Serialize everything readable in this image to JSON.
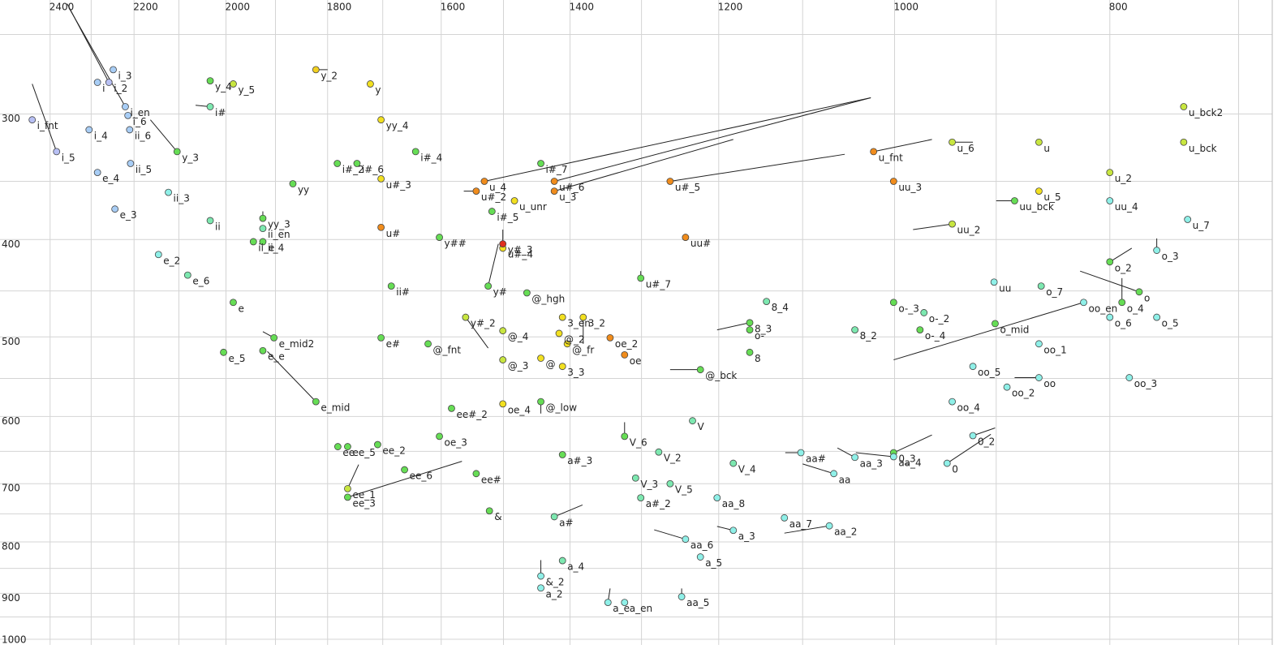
{
  "chart_data": {
    "type": "scatter",
    "xscale": "log",
    "yscale": "log",
    "xlim": [
      2528,
      676
    ],
    "ylim": [
      231,
      1013
    ],
    "xticks": [
      2400,
      2200,
      2000,
      1800,
      1600,
      1400,
      1200,
      1000,
      800
    ],
    "yticks": [
      300,
      400,
      500,
      600,
      700,
      800,
      900,
      1000
    ],
    "xgrid": [
      2400,
      2300,
      2200,
      2100,
      2000,
      1900,
      1800,
      1700,
      1600,
      1500,
      1400,
      1300,
      1200,
      1100,
      1000,
      900,
      800,
      700
    ],
    "ygrid": [
      250,
      300,
      350,
      400,
      450,
      500,
      550,
      600,
      650,
      700,
      750,
      800,
      850,
      900,
      950,
      1000
    ],
    "points": [
      {
        "label": "i_fnt",
        "x": 2445,
        "y": 304,
        "color": "#b8c0f4"
      },
      {
        "label": "i_5",
        "x": 2384,
        "y": 327,
        "color": "#b8c0f4",
        "tail": [
          2445,
          280
        ]
      },
      {
        "label": "i",
        "x": 2285,
        "y": 279,
        "color": "#a8cdf5"
      },
      {
        "label": "i_2",
        "x": 2258,
        "y": 279,
        "color": "#b8c0f4",
        "tail": [
          2358,
          233
        ]
      },
      {
        "label": "i_3",
        "x": 2248,
        "y": 271,
        "color": "#a8cdf5"
      },
      {
        "label": "i_en",
        "x": 2220,
        "y": 295,
        "color": "#a8cdf5",
        "tail": [
          2354,
          235
        ]
      },
      {
        "label": "i_6",
        "x": 2214,
        "y": 301,
        "color": "#a8cdf5"
      },
      {
        "label": "i_4",
        "x": 2305,
        "y": 311,
        "color": "#a8cdf5"
      },
      {
        "label": "e_4",
        "x": 2285,
        "y": 343,
        "color": "#a8cdf5"
      },
      {
        "label": "e_3",
        "x": 2244,
        "y": 373,
        "color": "#a8cdf5"
      },
      {
        "label": "ii_6",
        "x": 2210,
        "y": 311,
        "color": "#a8cdf5"
      },
      {
        "label": "ii_5",
        "x": 2208,
        "y": 336,
        "color": "#a8cdf5"
      },
      {
        "label": "ii_3",
        "x": 2123,
        "y": 359,
        "color": "#8ff0e8"
      },
      {
        "label": "i#",
        "x": 2033,
        "y": 295,
        "color": "#7de8b0",
        "tail": [
          2064,
          294
        ]
      },
      {
        "label": "y_3",
        "x": 2104,
        "y": 327,
        "color": "#66dd55",
        "tail": [
          2163,
          304
        ]
      },
      {
        "label": "y_4",
        "x": 2033,
        "y": 278,
        "color": "#66dd55"
      },
      {
        "label": "y_5",
        "x": 1985,
        "y": 280,
        "color": "#c8e640"
      },
      {
        "label": "y_2",
        "x": 1822,
        "y": 271,
        "color": "#f2d020",
        "tail": [
          1800,
          271
        ]
      },
      {
        "label": "y",
        "x": 1722,
        "y": 280,
        "color": "#f2e020"
      },
      {
        "label": "yy_4",
        "x": 1703,
        "y": 304,
        "color": "#f2e020"
      },
      {
        "label": "i#_4",
        "x": 1643,
        "y": 327,
        "color": "#66dd55"
      },
      {
        "label": "i#_2",
        "x": 1782,
        "y": 336,
        "color": "#66dd55"
      },
      {
        "label": "i#_6",
        "x": 1746,
        "y": 336,
        "color": "#66dd55"
      },
      {
        "label": "u#_3",
        "x": 1703,
        "y": 348,
        "color": "#f2e020"
      },
      {
        "label": "yy",
        "x": 1866,
        "y": 352,
        "color": "#66dd55"
      },
      {
        "label": "ii",
        "x": 2033,
        "y": 383,
        "color": "#7de8b0"
      },
      {
        "label": "yy_3",
        "x": 1925,
        "y": 381,
        "color": "#66dd55",
        "tail": [
          1925,
          375
        ]
      },
      {
        "label": "ii_en",
        "x": 1925,
        "y": 390,
        "color": "#7de8b0"
      },
      {
        "label": "ii_e",
        "x": 1944,
        "y": 402,
        "color": "#66dd55"
      },
      {
        "label": "ii_4",
        "x": 1925,
        "y": 402,
        "color": "#66dd55"
      },
      {
        "label": "e_2",
        "x": 2145,
        "y": 414,
        "color": "#8ff0e8"
      },
      {
        "label": "e_6",
        "x": 2081,
        "y": 434,
        "color": "#7de8b0"
      },
      {
        "label": "e",
        "x": 1985,
        "y": 462,
        "color": "#66dd55"
      },
      {
        "label": "e_5",
        "x": 2005,
        "y": 518,
        "color": "#66dd55"
      },
      {
        "label": "e_mid2",
        "x": 1903,
        "y": 501,
        "color": "#66dd55",
        "tail": [
          1925,
          494
        ]
      },
      {
        "label": "e_e",
        "x": 1925,
        "y": 516,
        "color": "#66dd55"
      },
      {
        "label": "e_mid",
        "x": 1822,
        "y": 580,
        "color": "#66dd55",
        "tail": [
          1916,
          517
        ]
      },
      {
        "label": "u#",
        "x": 1703,
        "y": 389,
        "color": "#f08c1c"
      },
      {
        "label": "y##",
        "x": 1603,
        "y": 398,
        "color": "#66dd55"
      },
      {
        "label": "u_4",
        "x": 1530,
        "y": 350,
        "color": "#f08c1c",
        "tail": [
          1025,
          289
        ]
      },
      {
        "label": "u#_2",
        "x": 1543,
        "y": 358,
        "color": "#f08c1c",
        "tail": [
          1563,
          358
        ]
      },
      {
        "label": "u_unr",
        "x": 1483,
        "y": 366,
        "color": "#f2e020"
      },
      {
        "label": "i#_5",
        "x": 1518,
        "y": 375,
        "color": "#66dd55"
      },
      {
        "label": "i#_7",
        "x": 1443,
        "y": 336,
        "color": "#66dd55"
      },
      {
        "label": "u#_6",
        "x": 1423,
        "y": 350,
        "color": "#f08c1c",
        "tail": [
          1025,
          289
        ]
      },
      {
        "label": "u_3",
        "x": 1423,
        "y": 358,
        "color": "#f08c1c",
        "tail": [
          1182,
          318
        ]
      },
      {
        "label": "u#_5",
        "x": 1262,
        "y": 350,
        "color": "#f08c1c",
        "tail": [
          1053,
          329
        ]
      },
      {
        "label": "uu#",
        "x": 1242,
        "y": 398,
        "color": "#f08c1c"
      },
      {
        "label": "u#_7",
        "x": 1301,
        "y": 437,
        "color": "#66dd55",
        "tail": [
          1301,
          430
        ]
      },
      {
        "label": "u#_4",
        "x": 1501,
        "y": 408,
        "color": "#f2e020"
      },
      {
        "label": "y#_3",
        "x": 1501,
        "y": 404,
        "color": "#e0301c",
        "tail": [
          1501,
          391
        ]
      },
      {
        "label": "y#",
        "x": 1524,
        "y": 445,
        "color": "#66dd55",
        "tail": [
          1508,
          404
        ]
      },
      {
        "label": "ii#",
        "x": 1685,
        "y": 445,
        "color": "#66dd55"
      },
      {
        "label": "@_hgh",
        "x": 1464,
        "y": 452,
        "color": "#66dd55"
      },
      {
        "label": "y#_2",
        "x": 1560,
        "y": 478,
        "color": "#c8e640",
        "tail": [
          1524,
          513
        ]
      },
      {
        "label": "@_4",
        "x": 1501,
        "y": 493,
        "color": "#c8e640"
      },
      {
        "label": "e#",
        "x": 1703,
        "y": 501,
        "color": "#66dd55"
      },
      {
        "label": "@_fnt",
        "x": 1622,
        "y": 508,
        "color": "#66dd55"
      },
      {
        "label": "@_3",
        "x": 1501,
        "y": 527,
        "color": "#c8e640"
      },
      {
        "label": "@",
        "x": 1443,
        "y": 525,
        "color": "#f2e020"
      },
      {
        "label": "3_3",
        "x": 1411,
        "y": 535,
        "color": "#f2e020"
      },
      {
        "label": "@_2",
        "x": 1416,
        "y": 496,
        "color": "#f2e020"
      },
      {
        "label": "3_en",
        "x": 1411,
        "y": 478,
        "color": "#f2e020"
      },
      {
        "label": "3_2",
        "x": 1381,
        "y": 478,
        "color": "#f2e020",
        "tail": [
          1381,
          508
        ]
      },
      {
        "label": "@_fr",
        "x": 1404,
        "y": 508,
        "color": "#f2e020"
      },
      {
        "label": "oe_2",
        "x": 1343,
        "y": 501,
        "color": "#f08c1c"
      },
      {
        "label": "oe",
        "x": 1323,
        "y": 521,
        "color": "#f08c1c"
      },
      {
        "label": "@_bck",
        "x": 1223,
        "y": 539,
        "color": "#66dd55",
        "tail": [
          1262,
          539
        ]
      },
      {
        "label": "8_4",
        "x": 1142,
        "y": 461,
        "color": "#7de8b0"
      },
      {
        "label": "8_3",
        "x": 1162,
        "y": 484,
        "color": "#66dd55",
        "tail": [
          1202,
          492
        ]
      },
      {
        "label": "o-",
        "x": 1162,
        "y": 492,
        "color": "#66dd55"
      },
      {
        "label": "8",
        "x": 1162,
        "y": 518,
        "color": "#66dd55"
      },
      {
        "label": "8_2",
        "x": 1042,
        "y": 492,
        "color": "#7de8b0"
      },
      {
        "label": "o-_3",
        "x": 1001,
        "y": 462,
        "color": "#66dd55"
      },
      {
        "label": "o-_2",
        "x": 970,
        "y": 473,
        "color": "#7de8b0"
      },
      {
        "label": "o-_4",
        "x": 974,
        "y": 492,
        "color": "#66dd55"
      },
      {
        "label": "o_mid",
        "x": 901,
        "y": 485,
        "color": "#66dd55"
      },
      {
        "label": "uu",
        "x": 902,
        "y": 441,
        "color": "#8ff0e8"
      },
      {
        "label": "o_7",
        "x": 859,
        "y": 445,
        "color": "#7de8b0"
      },
      {
        "label": "oo_en",
        "x": 822,
        "y": 462,
        "color": "#8ff0e8",
        "tail": [
          1001,
          527
        ]
      },
      {
        "label": "o_4",
        "x": 790,
        "y": 462,
        "color": "#66dd55",
        "tail": [
          790,
          437
        ]
      },
      {
        "label": "o",
        "x": 776,
        "y": 451,
        "color": "#66dd55",
        "tail": [
          825,
          430
        ]
      },
      {
        "label": "o_6",
        "x": 800,
        "y": 478,
        "color": "#8ff0e8"
      },
      {
        "label": "o_5",
        "x": 762,
        "y": 478,
        "color": "#8ff0e8"
      },
      {
        "label": "o_3",
        "x": 762,
        "y": 410,
        "color": "#8ff0e8",
        "tail": [
          762,
          399
        ]
      },
      {
        "label": "o_2",
        "x": 800,
        "y": 421,
        "color": "#66dd55",
        "tail": [
          782,
          408
        ]
      },
      {
        "label": "u_7",
        "x": 738,
        "y": 382,
        "color": "#8ff0e8"
      },
      {
        "label": "u_bck2",
        "x": 741,
        "y": 295,
        "color": "#c8e640"
      },
      {
        "label": "u_bck",
        "x": 741,
        "y": 320,
        "color": "#c8e640"
      },
      {
        "label": "u_2",
        "x": 800,
        "y": 343,
        "color": "#c8e640"
      },
      {
        "label": "uu_4",
        "x": 800,
        "y": 366,
        "color": "#8ff0e8"
      },
      {
        "label": "u",
        "x": 861,
        "y": 320,
        "color": "#c8e640"
      },
      {
        "label": "u_5",
        "x": 861,
        "y": 358,
        "color": "#f2e020"
      },
      {
        "label": "uu_bck",
        "x": 883,
        "y": 366,
        "color": "#66dd55",
        "tail": [
          900,
          366
        ]
      },
      {
        "label": "u_6",
        "x": 942,
        "y": 320,
        "color": "#c8e640",
        "tail": [
          922,
          320
        ]
      },
      {
        "label": "u_fnt",
        "x": 1022,
        "y": 327,
        "color": "#f08c1c",
        "tail": [
          962,
          318
        ]
      },
      {
        "label": "uu_3",
        "x": 1001,
        "y": 350,
        "color": "#f08c1c"
      },
      {
        "label": "uu_2",
        "x": 942,
        "y": 386,
        "color": "#c8e640",
        "tail": [
          981,
          391
        ]
      },
      {
        "label": "oo_1",
        "x": 861,
        "y": 508,
        "color": "#8ff0e8"
      },
      {
        "label": "oo_5",
        "x": 922,
        "y": 535,
        "color": "#8ff0e8"
      },
      {
        "label": "oo_2",
        "x": 890,
        "y": 561,
        "color": "#8ff0e8"
      },
      {
        "label": "oo",
        "x": 861,
        "y": 549,
        "color": "#8ff0e8",
        "tail": [
          883,
          549
        ]
      },
      {
        "label": "oo_3",
        "x": 784,
        "y": 549,
        "color": "#8ff0e8"
      },
      {
        "label": "oo_4",
        "x": 942,
        "y": 580,
        "color": "#8ff0e8"
      },
      {
        "label": "0_2",
        "x": 922,
        "y": 627,
        "color": "#8ff0e8",
        "tail": [
          901,
          616
        ]
      },
      {
        "label": "0",
        "x": 947,
        "y": 668,
        "color": "#8ff0e8",
        "tail": [
          905,
          625
        ]
      },
      {
        "label": "0_3",
        "x": 1001,
        "y": 652,
        "color": "#66dd55",
        "tail": [
          962,
          626
        ]
      },
      {
        "label": "aa_4",
        "x": 1001,
        "y": 658,
        "color": "#8ff0e8",
        "tail": [
          1041,
          652
        ]
      },
      {
        "label": "aa_3",
        "x": 1042,
        "y": 659,
        "color": "#8ff0e8",
        "tail": [
          1061,
          645
        ]
      },
      {
        "label": "aa#",
        "x": 1102,
        "y": 652,
        "color": "#8ff0e8",
        "tail": [
          1120,
          652
        ]
      },
      {
        "label": "aa",
        "x": 1065,
        "y": 684,
        "color": "#8ff0e8",
        "tail": [
          1100,
          669
        ]
      },
      {
        "label": "V",
        "x": 1233,
        "y": 606,
        "color": "#7de8b0"
      },
      {
        "label": "V_6",
        "x": 1323,
        "y": 628,
        "color": "#66dd55",
        "tail": [
          1323,
          608
        ]
      },
      {
        "label": "V_2",
        "x": 1277,
        "y": 651,
        "color": "#7de8b0"
      },
      {
        "label": "V_4",
        "x": 1182,
        "y": 668,
        "color": "#7de8b0"
      },
      {
        "label": "V_3",
        "x": 1308,
        "y": 691,
        "color": "#7de8b0"
      },
      {
        "label": "V_5",
        "x": 1262,
        "y": 700,
        "color": "#7de8b0"
      },
      {
        "label": "a#_3",
        "x": 1411,
        "y": 655,
        "color": "#66dd55"
      },
      {
        "label": "a#_2",
        "x": 1301,
        "y": 723,
        "color": "#7de8b0"
      },
      {
        "label": "aa_8",
        "x": 1202,
        "y": 723,
        "color": "#8ff0e8"
      },
      {
        "label": "a_3",
        "x": 1182,
        "y": 779,
        "color": "#8ff0e8",
        "tail": [
          1202,
          772
        ]
      },
      {
        "label": "aa_7",
        "x": 1121,
        "y": 757,
        "color": "#8ff0e8"
      },
      {
        "label": "aa_2",
        "x": 1070,
        "y": 771,
        "color": "#8ff0e8",
        "tail": [
          1121,
          784
        ]
      },
      {
        "label": "aa_6",
        "x": 1242,
        "y": 795,
        "color": "#8ff0e8",
        "tail": [
          1283,
          778
        ]
      },
      {
        "label": "a_5",
        "x": 1223,
        "y": 828,
        "color": "#8ff0e8"
      },
      {
        "label": "a_4",
        "x": 1411,
        "y": 835,
        "color": "#7de8b0"
      },
      {
        "label": "a#",
        "x": 1423,
        "y": 755,
        "color": "#7de8b0",
        "tail": [
          1382,
          735
        ]
      },
      {
        "label": "&",
        "x": 1522,
        "y": 745,
        "color": "#66dd55"
      },
      {
        "label": "&_2",
        "x": 1443,
        "y": 865,
        "color": "#8ff0e8",
        "tail": [
          1443,
          834
        ]
      },
      {
        "label": "a_2",
        "x": 1443,
        "y": 889,
        "color": "#8ff0e8"
      },
      {
        "label": "a_e",
        "x": 1346,
        "y": 919,
        "color": "#8ff0e8",
        "tail": [
          1343,
          890
        ]
      },
      {
        "label": "a_en",
        "x": 1323,
        "y": 919,
        "color": "#8ff0e8"
      },
      {
        "label": "aa_5",
        "x": 1247,
        "y": 907,
        "color": "#8ff0e8",
        "tail": [
          1247,
          890
        ]
      },
      {
        "label": "ee_1",
        "x": 1763,
        "y": 708,
        "color": "#c8e640",
        "tail": [
          1743,
          670
        ]
      },
      {
        "label": "ee_3",
        "x": 1763,
        "y": 722,
        "color": "#66dd55",
        "tail": [
          1566,
          665
        ]
      },
      {
        "label": "ee",
        "x": 1781,
        "y": 643,
        "color": "#66dd55"
      },
      {
        "label": "ee_5",
        "x": 1763,
        "y": 643,
        "color": "#66dd55"
      },
      {
        "label": "ee_2",
        "x": 1709,
        "y": 640,
        "color": "#66dd55"
      },
      {
        "label": "ee_6",
        "x": 1662,
        "y": 678,
        "color": "#66dd55"
      },
      {
        "label": "oe_3",
        "x": 1603,
        "y": 628,
        "color": "#66dd55"
      },
      {
        "label": "ee#_2",
        "x": 1583,
        "y": 589,
        "color": "#66dd55"
      },
      {
        "label": "ee#",
        "x": 1543,
        "y": 684,
        "color": "#66dd55"
      },
      {
        "label": "oe_4",
        "x": 1501,
        "y": 583,
        "color": "#f2e020"
      },
      {
        "label": "@_low",
        "x": 1443,
        "y": 580,
        "color": "#66dd55",
        "tail": [
          1443,
          596
        ]
      }
    ]
  }
}
